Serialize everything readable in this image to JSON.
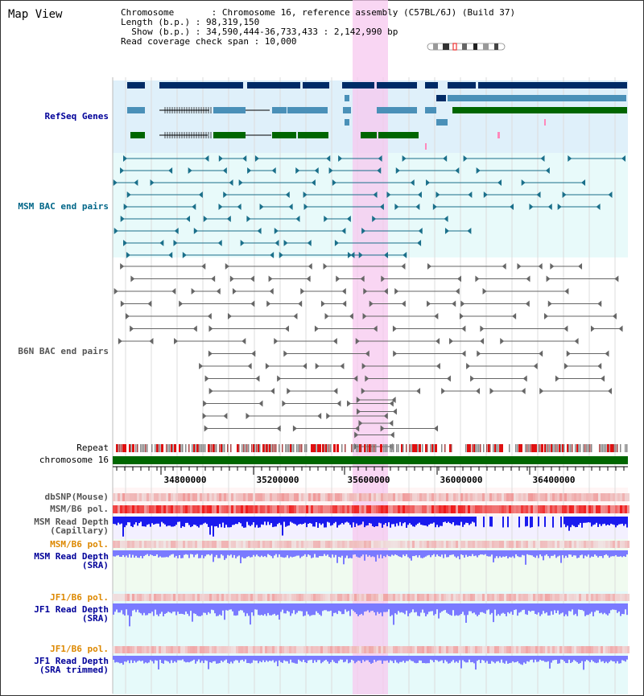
{
  "title": "Map View",
  "info": {
    "chromosome": "Chromosome       : Chromosome 16, reference assembly (C57BL/6J) (Build 37)",
    "length": "Length (b.p.) : 98,319,150",
    "show": "  Show (b.p.) : 34,590,444-36,733,433 : 2,142,990 bp",
    "coverage": "Read coverage check span : 10,000"
  },
  "tracks": {
    "refseq": "RefSeq Genes",
    "msm_bac": "MSM BAC end pairs",
    "b6n_bac": "B6N BAC end pairs",
    "repeat": "Repeat",
    "chromosome": "chromosome 16",
    "dbsnp": "dbSNP(Mouse)",
    "msm_b6_pol_1": "MSM/B6 pol.",
    "msm_depth_cap_1": "MSM Read Depth",
    "msm_depth_cap_2": "(Capillary)",
    "msm_b6_pol_2": "MSM/B6 pol.",
    "msm_depth_sra_1": "MSM Read Depth",
    "msm_depth_sra_2": "(SRA)",
    "jf1_b6_pol_1": "JF1/B6 pol.",
    "jf1_depth_sra_1": "JF1 Read Depth",
    "jf1_depth_sra_2": "(SRA)",
    "jf1_b6_pol_2": "JF1/B6 pol.",
    "jf1_depth_trim_1": "JF1 Read Depth",
    "jf1_depth_trim_2": "(SRA trimmed)"
  },
  "axis": {
    "ticks": [
      "34800000",
      "35200000",
      "35600000",
      "36000000",
      "36400000"
    ]
  },
  "colors": {
    "refseq_dark": "#002b66",
    "refseq_light": "#4a90b8",
    "refseq_green": "#006600",
    "msm_bac": "#1a6f8a",
    "b6n_bac": "#666666",
    "highlight": "#f7c8ef",
    "depth_blue": "#1a1aee",
    "depth_light": "#7a7aff",
    "pol_red": "#ee3333",
    "label_blue": "#000099",
    "label_orange": "#dd8800",
    "label_teal": "#006688"
  }
}
